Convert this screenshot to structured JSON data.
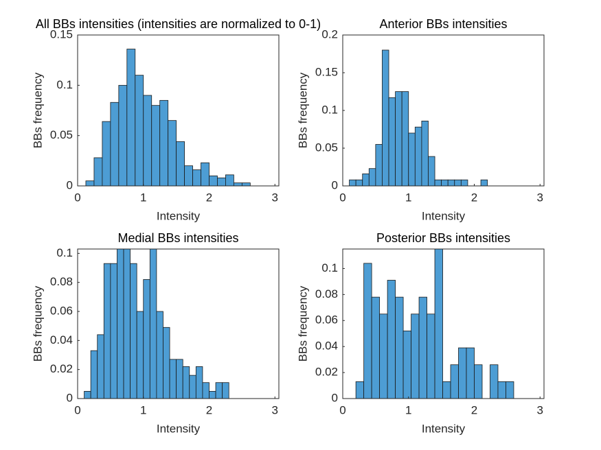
{
  "chart_data": [
    {
      "type": "histogram",
      "title": "All BBs intensities (intensities are normalized to 0-1)",
      "xlabel": "Intensity",
      "ylabel": "BBs frequency",
      "color": "#4d9dd4",
      "bins": [
        0.125,
        0.25,
        0.375,
        0.5,
        0.625,
        0.75,
        0.875,
        1.0,
        1.125,
        1.25,
        1.375,
        1.5,
        1.625,
        1.75,
        1.875,
        2.0,
        2.125,
        2.25,
        2.375,
        2.5,
        2.625
      ],
      "counts": [
        0.005,
        0.028,
        0.064,
        0.083,
        0.1,
        0.136,
        0.11,
        0.09,
        0.08,
        0.085,
        0.065,
        0.044,
        0.02,
        0.016,
        0.023,
        0.01,
        0.008,
        0.011,
        0.003,
        0.003
      ],
      "xlim": [
        0,
        3.06
      ],
      "xticks": [
        0,
        1,
        2,
        3
      ],
      "ylim": [
        0,
        0.15
      ],
      "yticks": [
        0,
        0.05,
        0.1,
        0.15
      ]
    },
    {
      "type": "histogram",
      "title": "Anterior BBs intensities",
      "xlabel": "Intensity",
      "ylabel": "BBs frequency",
      "color": "#4d9dd4",
      "bins": [
        0.1,
        0.2,
        0.3,
        0.4,
        0.5,
        0.6,
        0.7,
        0.8,
        0.9,
        1.0,
        1.1,
        1.2,
        1.3,
        1.4,
        1.5,
        1.6,
        1.7,
        1.8,
        1.9,
        2.0,
        2.1,
        2.2,
        2.3
      ],
      "counts": [
        0.008,
        0.008,
        0.016,
        0.023,
        0.055,
        0.18,
        0.117,
        0.125,
        0.125,
        0.07,
        0.078,
        0.086,
        0.039,
        0.008,
        0.008,
        0.008,
        0.008,
        0.008,
        0,
        0,
        0.008,
        0
      ],
      "xlim": [
        0,
        3.06
      ],
      "xticks": [
        0,
        1,
        2,
        3
      ],
      "ylim": [
        0,
        0.2
      ],
      "yticks": [
        0,
        0.05,
        0.1,
        0.15,
        0.2
      ]
    },
    {
      "type": "histogram",
      "title": "Medial BBs intensities",
      "xlabel": "Intensity",
      "ylabel": "BBs frequency",
      "color": "#4d9dd4",
      "bins": [
        0.1,
        0.2,
        0.3,
        0.4,
        0.5,
        0.6,
        0.7,
        0.8,
        0.9,
        1.0,
        1.1,
        1.2,
        1.3,
        1.4,
        1.5,
        1.6,
        1.7,
        1.8,
        1.9,
        2.0,
        2.1,
        2.2,
        2.3
      ],
      "counts": [
        0.005,
        0.033,
        0.044,
        0.093,
        0.093,
        0.11,
        0.11,
        0.093,
        0.06,
        0.082,
        0.11,
        0.06,
        0.049,
        0.027,
        0.027,
        0.022,
        0.016,
        0.022,
        0.011,
        0.005,
        0.011,
        0.011
      ],
      "xlim": [
        0,
        3.06
      ],
      "xticks": [
        0,
        1,
        2,
        3
      ],
      "ylim": [
        0,
        0.103
      ],
      "yticks": [
        0,
        0.02,
        0.04,
        0.06,
        0.08,
        0.1
      ]
    },
    {
      "type": "histogram",
      "title": "Posterior BBs intensities",
      "xlabel": "Intensity",
      "ylabel": "BBs frequency",
      "color": "#4d9dd4",
      "bins": [
        0.2,
        0.32,
        0.44,
        0.56,
        0.68,
        0.8,
        0.92,
        1.04,
        1.16,
        1.28,
        1.4,
        1.52,
        1.64,
        1.76,
        1.88,
        2.0,
        2.12,
        2.24,
        2.36,
        2.48,
        2.6
      ],
      "counts": [
        0.013,
        0.104,
        0.078,
        0.065,
        0.091,
        0.078,
        0.052,
        0.065,
        0.078,
        0.065,
        0.12,
        0.013,
        0.026,
        0.039,
        0.039,
        0.026,
        0,
        0.026,
        0.013,
        0.013
      ],
      "xlim": [
        0,
        3.06
      ],
      "xticks": [
        0,
        1,
        2,
        3
      ],
      "ylim": [
        0,
        0.115
      ],
      "yticks": [
        0,
        0.02,
        0.04,
        0.06,
        0.08,
        0.1
      ]
    }
  ]
}
